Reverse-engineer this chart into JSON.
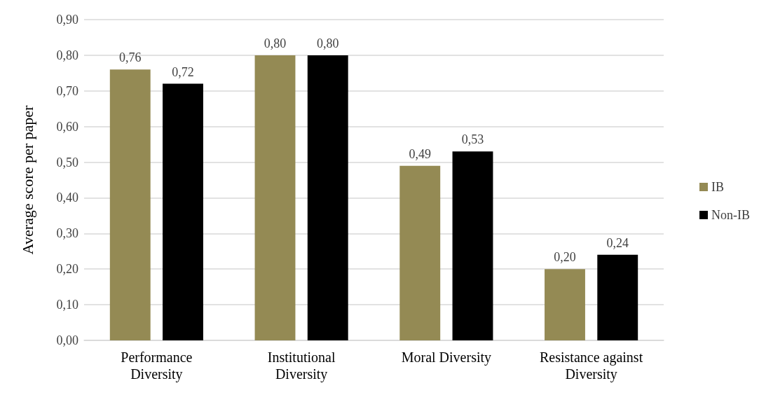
{
  "chart_data": {
    "type": "bar",
    "ylabel": "Average score per paper",
    "categories": [
      "Performance\nDiversity",
      "Institutional\nDiversity",
      "Moral Diversity",
      "Resistance against\nDiversity"
    ],
    "series": [
      {
        "name": "IB",
        "color": "#948a54",
        "values": [
          0.76,
          0.8,
          0.49,
          0.2
        ],
        "value_labels": [
          "0,76",
          "0,80",
          "0,49",
          "0,20"
        ]
      },
      {
        "name": "Non-IB",
        "color": "#000000",
        "values": [
          0.72,
          0.8,
          0.53,
          0.24
        ],
        "value_labels": [
          "0,72",
          "0,80",
          "0,53",
          "0,24"
        ]
      }
    ],
    "ylim": [
      0,
      0.9
    ],
    "yticks": [
      {
        "value": 0,
        "label": "0,00"
      },
      {
        "value": 0.1,
        "label": "0,10"
      },
      {
        "value": 0.2,
        "label": "0,20"
      },
      {
        "value": 0.3,
        "label": "0,30"
      },
      {
        "value": 0.4,
        "label": "0,40"
      },
      {
        "value": 0.5,
        "label": "0,50"
      },
      {
        "value": 0.6,
        "label": "0,60"
      },
      {
        "value": 0.7,
        "label": "0,70"
      },
      {
        "value": 0.8,
        "label": "0,80"
      },
      {
        "value": 0.9,
        "label": "0,90"
      }
    ],
    "grid": "y",
    "legend": "right"
  }
}
